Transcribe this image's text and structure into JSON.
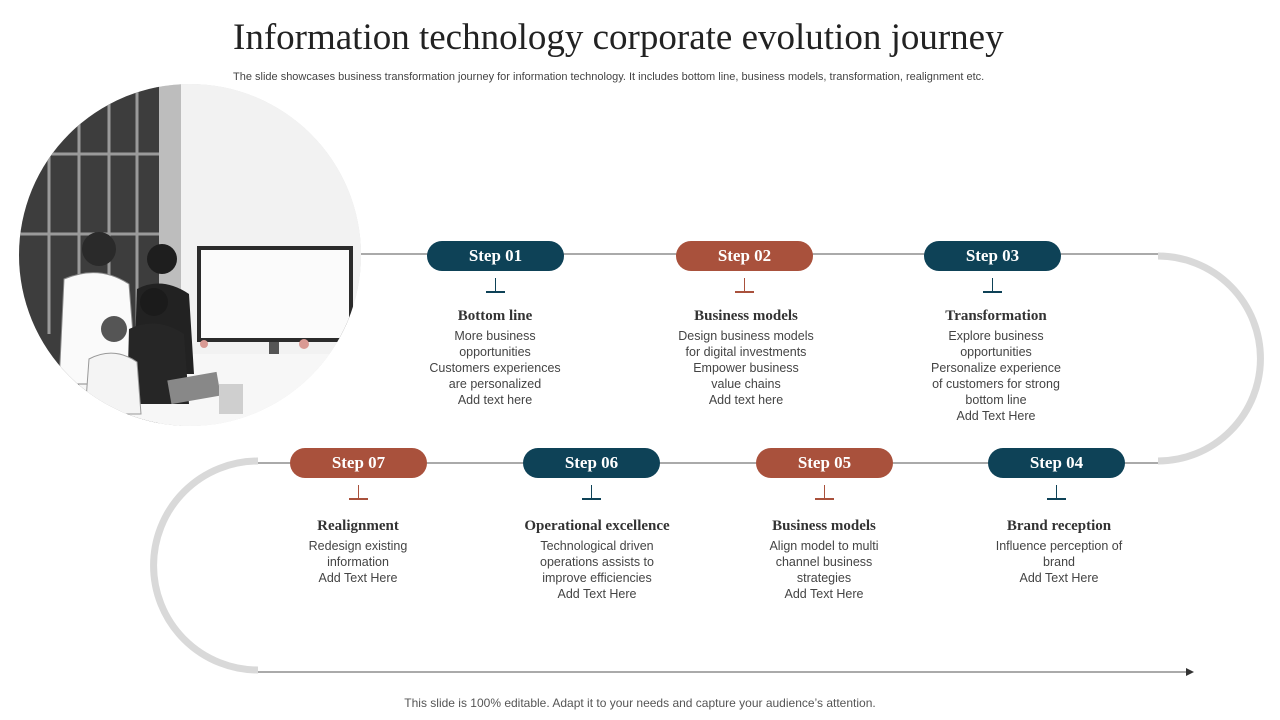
{
  "header": {
    "title": "Information technology corporate evolution journey",
    "subtitle": "The slide showcases business transformation journey for information technology. It includes bottom line, business models, transformation, realignment etc."
  },
  "colors": {
    "blue": "#0e4257",
    "red": "#a9513c",
    "track": "#d9d9d9"
  },
  "steps": [
    {
      "label": "Step 01",
      "color": "blue",
      "heading": "Bottom line",
      "lines": [
        "More business",
        "opportunities",
        "Customers experiences",
        "are personalized",
        "Add text here"
      ]
    },
    {
      "label": "Step 02",
      "color": "red",
      "heading": "Business models",
      "lines": [
        "Design business models",
        "for digital investments",
        "Empower business",
        "value chains",
        "Add text here"
      ]
    },
    {
      "label": "Step 03",
      "color": "blue",
      "heading": "Transformation",
      "lines": [
        "Explore business",
        "opportunities",
        "Personalize experience",
        "of customers for strong",
        "bottom line",
        "Add Text Here"
      ]
    },
    {
      "label": "Step 04",
      "color": "blue",
      "heading": "Brand reception",
      "lines": [
        "Influence perception of",
        "brand",
        "Add Text Here"
      ]
    },
    {
      "label": "Step 05",
      "color": "red",
      "heading": "Business models",
      "lines": [
        "Align model to multi",
        "channel business",
        "strategies",
        "Add Text Here"
      ]
    },
    {
      "label": "Step 06",
      "color": "blue",
      "heading": "Operational excellence",
      "lines": [
        "Technological driven",
        "operations assists to",
        "improve efficiencies",
        "Add Text Here"
      ]
    },
    {
      "label": "Step 07",
      "color": "red",
      "heading": "Realignment",
      "lines": [
        "Redesign existing",
        "information",
        "Add Text Here"
      ]
    }
  ],
  "photo": {
    "description_icon": "office-team-photo"
  },
  "footer": "This slide is 100% editable. Adapt it to your needs and capture your audience’s attention."
}
